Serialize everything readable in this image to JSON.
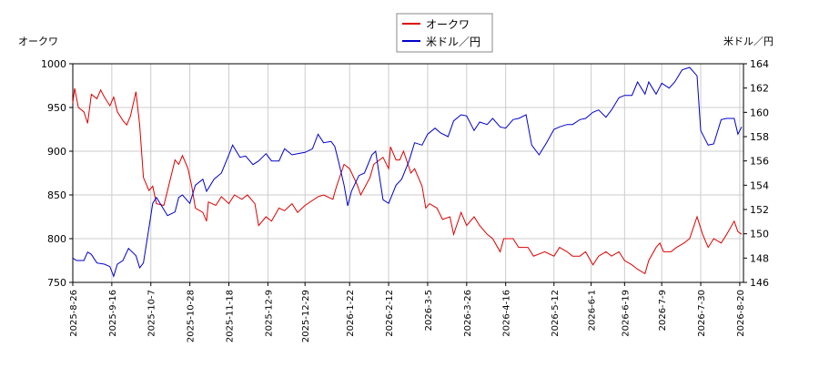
{
  "chart_data": {
    "type": "line",
    "y_label": "オークワ",
    "y2_label": "米ドル／円",
    "xlim": [
      "2025-8-26",
      "2026-8-22"
    ],
    "xticks": [
      "2025-8-26",
      "2025-9-16",
      "2025-10-7",
      "2025-10-28",
      "2025-11-18",
      "2025-12-9",
      "2025-12-29",
      "2026-1-22",
      "2026-2-12",
      "2026-3-5",
      "2026-3-26",
      "2026-4-16",
      "2026-5-12",
      "2026-6-1",
      "2026-6-19",
      "2026-7-9",
      "2026-7-30",
      "2026-8-20"
    ],
    "ylim": [
      750,
      1000
    ],
    "yticks": [
      750,
      800,
      850,
      900,
      950,
      1000
    ],
    "y2lim": [
      146,
      164
    ],
    "y2ticks": [
      146,
      148,
      150,
      152,
      154,
      156,
      158,
      160,
      162,
      164
    ],
    "grid": true,
    "legend": "top",
    "series": [
      {
        "name": "オークワ",
        "color": "#dd0000",
        "x": [
          "2025-8-26",
          "2025-8-27",
          "2025-8-29",
          "2025-9-1",
          "2025-9-3",
          "2025-9-5",
          "2025-9-8",
          "2025-9-10",
          "2025-9-12",
          "2025-9-15",
          "2025-9-17",
          "2025-9-19",
          "2025-9-22",
          "2025-9-24",
          "2025-9-26",
          "2025-9-29",
          "2025-10-1",
          "2025-10-3",
          "2025-10-6",
          "2025-10-8",
          "2025-10-10",
          "2025-10-14",
          "2025-10-16",
          "2025-10-20",
          "2025-10-22",
          "2025-10-24",
          "2025-10-27",
          "2025-10-29",
          "2025-10-31",
          "2025-11-4",
          "2025-11-6",
          "2025-11-7",
          "2025-11-11",
          "2025-11-14",
          "2025-11-18",
          "2025-11-21",
          "2025-11-25",
          "2025-11-28",
          "2025-12-2",
          "2025-12-4",
          "2025-12-8",
          "2025-12-11",
          "2025-12-15",
          "2025-12-18",
          "2025-12-22",
          "2025-12-25",
          "2025-12-29",
          "2026-1-5",
          "2026-1-8",
          "2026-1-13",
          "2026-1-15",
          "2026-1-19",
          "2026-1-22",
          "2026-1-26",
          "2026-1-28",
          "2026-2-2",
          "2026-2-4",
          "2026-2-9",
          "2026-2-12",
          "2026-2-13",
          "2026-2-16",
          "2026-2-18",
          "2026-2-20",
          "2026-2-24",
          "2026-2-26",
          "2026-3-2",
          "2026-3-4",
          "2026-3-6",
          "2026-3-10",
          "2026-3-13",
          "2026-3-17",
          "2026-3-19",
          "2026-3-23",
          "2026-3-26",
          "2026-3-30",
          "2026-4-2",
          "2026-4-6",
          "2026-4-9",
          "2026-4-13",
          "2026-4-15",
          "2026-4-20",
          "2026-4-23",
          "2026-4-28",
          "2026-5-1",
          "2026-5-7",
          "2026-5-12",
          "2026-5-15",
          "2026-5-19",
          "2026-5-22",
          "2026-5-26",
          "2026-5-29",
          "2026-6-2",
          "2026-6-5",
          "2026-6-9",
          "2026-6-12",
          "2026-6-16",
          "2026-6-19",
          "2026-6-23",
          "2026-6-26",
          "2026-6-30",
          "2026-7-2",
          "2026-7-6",
          "2026-7-8",
          "2026-7-10",
          "2026-7-14",
          "2026-7-17",
          "2026-7-21",
          "2026-7-24",
          "2026-7-28",
          "2026-7-31",
          "2026-8-3",
          "2026-8-6",
          "2026-8-10",
          "2026-8-13",
          "2026-8-17",
          "2026-8-19",
          "2026-8-21"
        ],
        "values": [
          955,
          972,
          950,
          945,
          932,
          965,
          960,
          970,
          962,
          952,
          962,
          945,
          935,
          930,
          940,
          968,
          930,
          870,
          855,
          860,
          840,
          838,
          855,
          890,
          885,
          895,
          880,
          860,
          835,
          830,
          820,
          842,
          838,
          848,
          840,
          850,
          845,
          850,
          840,
          815,
          825,
          820,
          835,
          832,
          840,
          830,
          838,
          848,
          850,
          845,
          860,
          885,
          880,
          862,
          850,
          870,
          885,
          893,
          880,
          905,
          890,
          890,
          900,
          875,
          880,
          860,
          835,
          840,
          835,
          822,
          825,
          805,
          830,
          815,
          825,
          815,
          805,
          800,
          785,
          800,
          800,
          790,
          790,
          780,
          785,
          780,
          790,
          785,
          780,
          780,
          785,
          770,
          780,
          785,
          780,
          785,
          775,
          770,
          765,
          760,
          775,
          790,
          795,
          785,
          785,
          790,
          795,
          800,
          825,
          805,
          790,
          800,
          795,
          805,
          820,
          808,
          805
        ]
      },
      {
        "name": "米ドル／円",
        "color": "#0000cc",
        "axis": "y2",
        "x": [
          "2025-8-26",
          "2025-8-28",
          "2025-9-1",
          "2025-9-3",
          "2025-9-5",
          "2025-9-8",
          "2025-9-12",
          "2025-9-15",
          "2025-9-17",
          "2025-9-19",
          "2025-9-22",
          "2025-9-25",
          "2025-9-29",
          "2025-10-1",
          "2025-10-3",
          "2025-10-6",
          "2025-10-8",
          "2025-10-10",
          "2025-10-14",
          "2025-10-16",
          "2025-10-20",
          "2025-10-22",
          "2025-10-24",
          "2025-10-28",
          "2025-10-31",
          "2025-11-4",
          "2025-11-6",
          "2025-11-10",
          "2025-11-14",
          "2025-11-18",
          "2025-11-20",
          "2025-11-24",
          "2025-11-27",
          "2025-12-1",
          "2025-12-4",
          "2025-12-8",
          "2025-12-11",
          "2025-12-15",
          "2025-12-18",
          "2025-12-22",
          "2025-12-25",
          "2025-12-29",
          "2026-1-2",
          "2026-1-5",
          "2026-1-8",
          "2026-1-12",
          "2026-1-14",
          "2026-1-16",
          "2026-1-19",
          "2026-1-21",
          "2026-1-23",
          "2026-1-27",
          "2026-1-30",
          "2026-2-3",
          "2026-2-5",
          "2026-2-9",
          "2026-2-12",
          "2026-2-16",
          "2026-2-19",
          "2026-2-23",
          "2026-2-26",
          "2026-3-2",
          "2026-3-5",
          "2026-3-9",
          "2026-3-12",
          "2026-3-16",
          "2026-3-19",
          "2026-3-23",
          "2026-3-26",
          "2026-3-30",
          "2026-4-2",
          "2026-4-6",
          "2026-4-9",
          "2026-4-13",
          "2026-4-16",
          "2026-4-20",
          "2026-4-23",
          "2026-4-27",
          "2026-4-30",
          "2026-5-4",
          "2026-5-8",
          "2026-5-12",
          "2026-5-15",
          "2026-5-19",
          "2026-5-22",
          "2026-5-26",
          "2026-5-29",
          "2026-6-2",
          "2026-6-5",
          "2026-6-9",
          "2026-6-12",
          "2026-6-16",
          "2026-6-19",
          "2026-6-23",
          "2026-6-26",
          "2026-6-30",
          "2026-7-2",
          "2026-7-6",
          "2026-7-9",
          "2026-7-13",
          "2026-7-16",
          "2026-7-20",
          "2026-7-24",
          "2026-7-28",
          "2026-7-30",
          "2026-8-3",
          "2026-8-6",
          "2026-8-10",
          "2026-8-13",
          "2026-8-17",
          "2026-8-19",
          "2026-8-21"
        ],
        "values": [
          148,
          147.8,
          147.8,
          148.5,
          148.3,
          147.6,
          147.5,
          147.3,
          146.5,
          147.5,
          147.8,
          148.8,
          148.2,
          147.2,
          147.6,
          150.5,
          152.5,
          153,
          152,
          151.5,
          151.8,
          153,
          153.2,
          152.5,
          154,
          154.5,
          153.5,
          154.5,
          155,
          156.5,
          157.3,
          156.3,
          156.4,
          155.7,
          156,
          156.6,
          156,
          156,
          157,
          156.5,
          156.6,
          156.7,
          157,
          158.2,
          157.5,
          157.6,
          157.2,
          156,
          154,
          152.3,
          153.5,
          154.8,
          155,
          156.5,
          156.8,
          152.8,
          152.5,
          154,
          154.5,
          156,
          157.5,
          157.3,
          158.2,
          158.7,
          158.3,
          158,
          159.3,
          159.8,
          159.7,
          158.5,
          159.2,
          159,
          159.5,
          158.8,
          158.7,
          159.4,
          159.5,
          159.8,
          157.3,
          156.5,
          157.5,
          158.6,
          158.8,
          159,
          159,
          159.4,
          159.5,
          160,
          160.2,
          159.6,
          160.2,
          161.2,
          161.4,
          161.4,
          162.5,
          161.5,
          162.5,
          161.5,
          162.4,
          162,
          162.5,
          163.5,
          163.7,
          163,
          158.5,
          157.3,
          157.4,
          159.4,
          159.5,
          159.5,
          158.2,
          158.8
        ]
      }
    ]
  }
}
